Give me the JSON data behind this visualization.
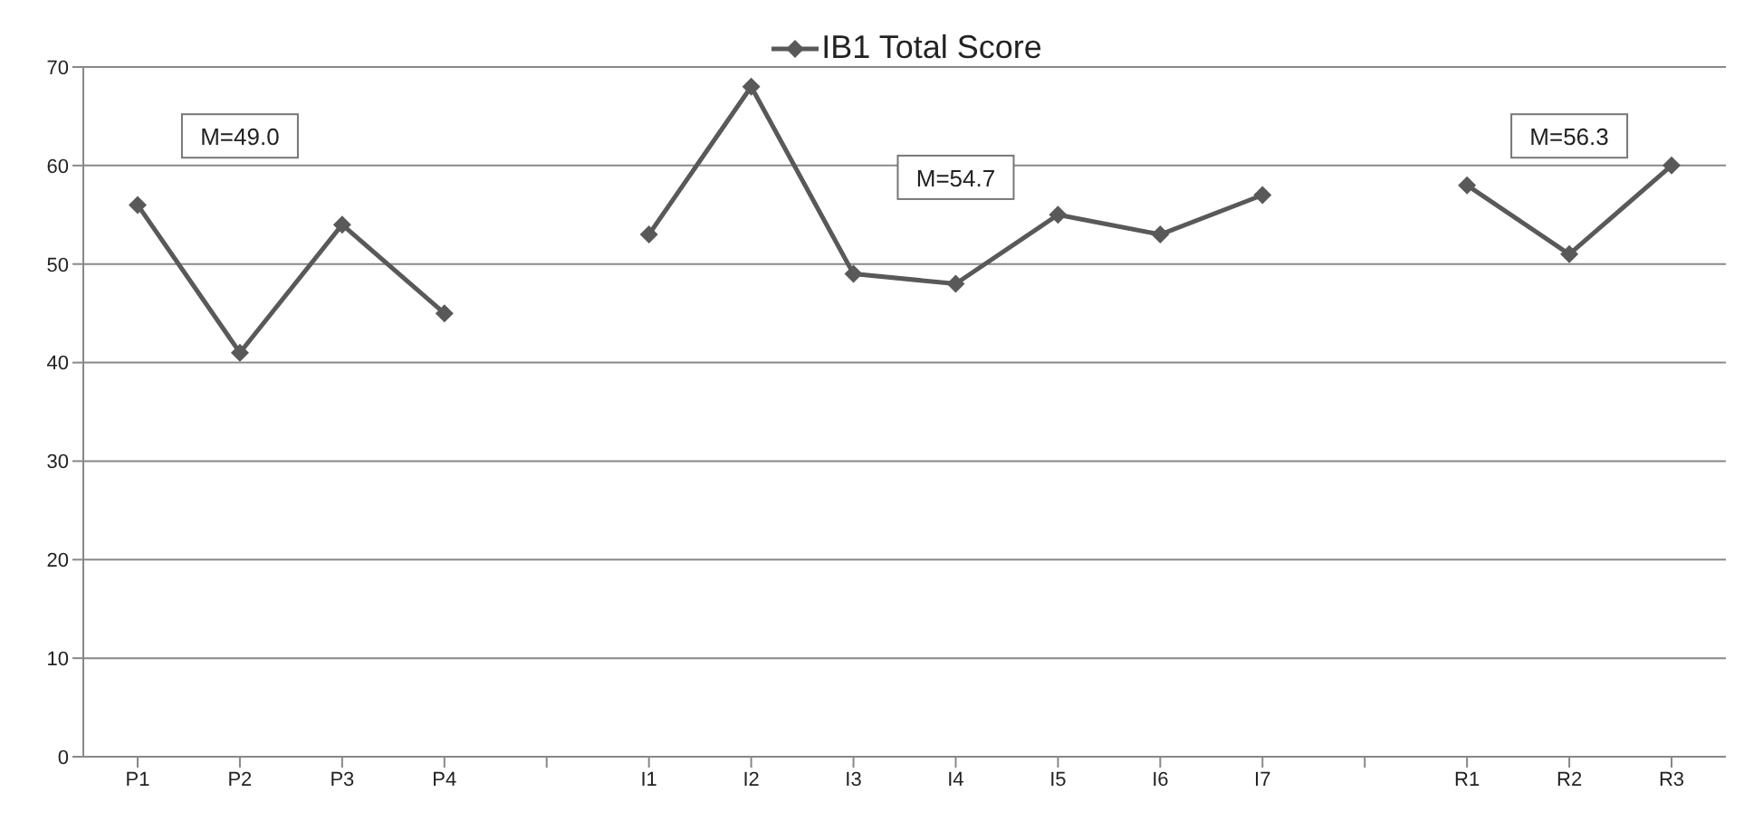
{
  "chart_data": {
    "type": "line",
    "categories": [
      "P1",
      "P2",
      "P3",
      "P4",
      null,
      "I1",
      "I2",
      "I3",
      "I4",
      "I5",
      "I6",
      "I7",
      null,
      "R1",
      "R2",
      "R3"
    ],
    "series": [
      {
        "name": "IB1 Total Score",
        "color": "#595959",
        "values": [
          56,
          41,
          54,
          45,
          null,
          53,
          68,
          49,
          48,
          55,
          53,
          57,
          null,
          58,
          51,
          60
        ]
      }
    ],
    "ylim": [
      0,
      70
    ],
    "yticks": [
      0,
      10,
      20,
      30,
      40,
      50,
      60,
      70
    ],
    "grid": "y",
    "legend": "top",
    "marker": "diamond",
    "line_style": "solid",
    "annotations": [
      "M=49.0",
      "M=54.7",
      "M=56.3"
    ]
  }
}
